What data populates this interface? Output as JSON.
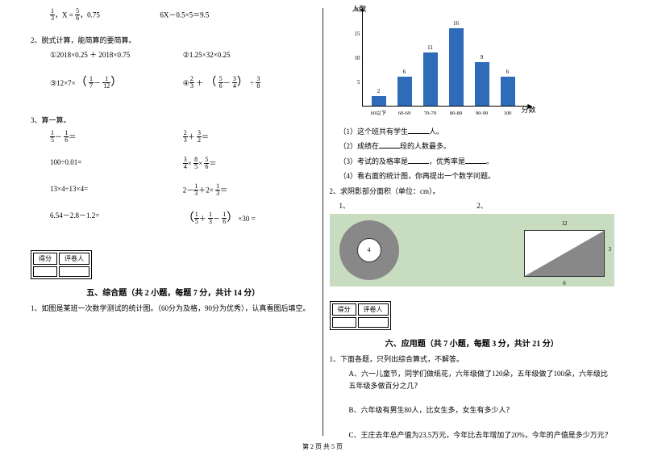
{
  "left": {
    "eq1a_pre": "，X =",
    "eq1a_post": "，0.75",
    "eq1b": "6X－0.5×5＝9.5",
    "q2": "2、脱式计算，能简算的要简算。",
    "q2a": "①2018×0.25 ＋ 2018×0.75",
    "q2b": "②1.25×32×0.25",
    "q2c_pre": "③12×7×",
    "q2d_pre": "④",
    "q2d_mid": " ＋ ",
    "q2d_end": " ÷",
    "q3": "3、算一算。",
    "q3a_op": "－",
    "eq": "＝",
    "q3b_op": "＋",
    "q3c": "100÷0.01=",
    "q3d_op1": "×",
    "q3d_op2": "×",
    "q3e": "13×4÷13×4=",
    "q3f_op1": "2－",
    "q3f_op2": "＋2×",
    "q3g": "6.54－2.8－1.2=",
    "q3h_op1": "＋",
    "q3h_op2": "－",
    "q3h_post": "×30 =",
    "score_label1": "得分",
    "score_label2": "评卷人",
    "section5": "五、综合题（共 2 小题，每题 7 分，共计 14 分）",
    "q5_1": "1、如图是某班一次数学测试的统计图。（60分为及格，90分为优秀），认真看图后填空。"
  },
  "right": {
    "chart": {
      "ylabel": "人数",
      "xlabel": "分数",
      "yticks": [
        "5",
        "10",
        "15",
        "20"
      ],
      "categories": [
        "60以下",
        "60-69",
        "70-79",
        "80-89",
        "90-99",
        "100"
      ],
      "values": [
        2,
        6,
        11,
        16,
        9,
        6
      ],
      "bar_color": "#2e6bb8",
      "ymax": 20
    },
    "q1_1": "（1）这个班共有学生",
    "q1_1b": "人。",
    "q1_2": "（2）成绩在",
    "q1_2b": "段的人数最多。",
    "q1_3": "（3）考试的及格率是",
    "q1_3b": "，优秀率是",
    "q1_3c": "。",
    "q1_4": "（4）看右面的统计图，你再提出一个数学问题。",
    "q2": "2、求阴影部分面积（单位：cm）。",
    "q2_1": "1、",
    "q2_2": "2、",
    "ring_inner": "4",
    "tri_top": "12",
    "tri_side": "3",
    "tri_bot": "6",
    "score_label1": "得分",
    "score_label2": "评卷人",
    "section6": "六、应用题（共 7 小题，每题 3 分，共计 21 分）",
    "q6_1": "1、下面各题，只列出综合算式，不解答。",
    "q6_1a": "A、六一儿童节，同学们做纸花，六年级做了120朵，五年级做了100朵，六年级比五年级多做百分之几？",
    "q6_1b": "B、六年级有男生80人，比女生多，女生有多少人？",
    "q6_1c": "C、王庄去年总产值为23.5万元，今年比去年增加了20%，今年的产值是多少万元？"
  },
  "footer": "第 2 页 共 5 页",
  "fracs": {
    "f13": {
      "n": "1",
      "d": "3"
    },
    "f56": {
      "n": "5",
      "d": "6"
    },
    "f17": {
      "n": "1",
      "d": "7"
    },
    "f112": {
      "n": "1",
      "d": "12"
    },
    "f23": {
      "n": "2",
      "d": "3"
    },
    "f56b": {
      "n": "5",
      "d": "6"
    },
    "f34": {
      "n": "3",
      "d": "4"
    },
    "f38": {
      "n": "3",
      "d": "8"
    },
    "f15": {
      "n": "1",
      "d": "5"
    },
    "f16": {
      "n": "1",
      "d": "6"
    },
    "f32": {
      "n": "3",
      "d": "2"
    },
    "f85": {
      "n": "8",
      "d": "5"
    },
    "f13b": {
      "n": "1",
      "d": "3"
    }
  }
}
